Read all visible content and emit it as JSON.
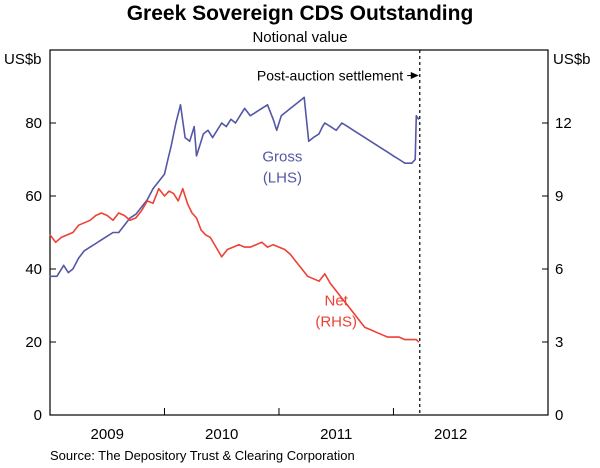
{
  "chart_data": {
    "type": "line",
    "title": "Greek Sovereign CDS Outstanding",
    "subtitle": "Notional value",
    "left_unit": "US$b",
    "right_unit": "US$b",
    "left_ylim": [
      0,
      100
    ],
    "right_ylim": [
      0,
      15
    ],
    "left_ticks": [
      0,
      20,
      40,
      60,
      80
    ],
    "right_ticks": [
      0,
      3,
      6,
      9,
      12
    ],
    "x_range": [
      2008.6,
      2012.95
    ],
    "year_boundaries": [
      2009.6,
      2010.6,
      2011.6
    ],
    "x_labels": [
      {
        "year": 2009.1,
        "label": "2009"
      },
      {
        "year": 2010.1,
        "label": "2010"
      },
      {
        "year": 2011.1,
        "label": "2011"
      },
      {
        "year": 2012.1,
        "label": "2012"
      }
    ],
    "annotation": {
      "text": "Post-auction settlement",
      "x": 2011.83,
      "arrow_from": 2011.72,
      "y_left": 93
    },
    "source": "Source: The Depository Trust & Clearing Corporation",
    "colors": {
      "gross": "#5457a6",
      "net": "#ee4136",
      "axis": "#000000"
    },
    "series": [
      {
        "name": "Gross",
        "axis": "left",
        "label_line1": "Gross",
        "label_line2": "(LHS)",
        "label_at": [
          2010.63,
          69.5
        ],
        "x": [
          2008.6,
          2008.66,
          2008.72,
          2008.76,
          2008.8,
          2008.85,
          2008.9,
          2008.95,
          2009.0,
          2009.05,
          2009.1,
          2009.15,
          2009.2,
          2009.25,
          2009.3,
          2009.35,
          2009.4,
          2009.45,
          2009.5,
          2009.55,
          2009.6,
          2009.63,
          2009.66,
          2009.7,
          2009.74,
          2009.78,
          2009.82,
          2009.86,
          2009.88,
          2009.9,
          2009.94,
          2009.98,
          2010.02,
          2010.06,
          2010.1,
          2010.14,
          2010.18,
          2010.22,
          2010.26,
          2010.3,
          2010.35,
          2010.4,
          2010.45,
          2010.5,
          2010.55,
          2010.58,
          2010.62,
          2010.66,
          2010.7,
          2010.74,
          2010.78,
          2010.82,
          2010.86,
          2010.9,
          2010.95,
          2010.98,
          2011.0,
          2011.05,
          2011.1,
          2011.15,
          2011.2,
          2011.25,
          2011.3,
          2011.35,
          2011.4,
          2011.45,
          2011.5,
          2011.55,
          2011.6,
          2011.65,
          2011.7,
          2011.76,
          2011.79,
          2011.8,
          2011.82
        ],
        "values": [
          38,
          38,
          41,
          39,
          40,
          43,
          45,
          46,
          47,
          48,
          49,
          50,
          50,
          52,
          54,
          55,
          57,
          59,
          62,
          64,
          66,
          70,
          74,
          80,
          85,
          76,
          75,
          79,
          71,
          73,
          77,
          78,
          76,
          78,
          80,
          79,
          81,
          80,
          82,
          84,
          82,
          83,
          84,
          85,
          81,
          78,
          82,
          83,
          84,
          85,
          86,
          87,
          75,
          76,
          77,
          79,
          80,
          79,
          78,
          80,
          79,
          78,
          77,
          76,
          75,
          74,
          73,
          72,
          71,
          70,
          69,
          69,
          70,
          82,
          81
        ]
      },
      {
        "name": "Net",
        "axis": "right",
        "label_line1": "Net",
        "label_line2": "(RHS)",
        "label_at": [
          2011.1,
          4.5
        ],
        "x": [
          2008.6,
          2008.65,
          2008.7,
          2008.75,
          2008.8,
          2008.85,
          2008.9,
          2008.95,
          2009.0,
          2009.05,
          2009.1,
          2009.15,
          2009.2,
          2009.25,
          2009.3,
          2009.35,
          2009.4,
          2009.45,
          2009.5,
          2009.55,
          2009.6,
          2009.64,
          2009.68,
          2009.72,
          2009.76,
          2009.8,
          2009.84,
          2009.88,
          2009.92,
          2009.96,
          2010.0,
          2010.05,
          2010.1,
          2010.15,
          2010.2,
          2010.25,
          2010.3,
          2010.35,
          2010.4,
          2010.45,
          2010.5,
          2010.55,
          2010.6,
          2010.65,
          2010.7,
          2010.75,
          2010.8,
          2010.85,
          2010.9,
          2010.95,
          2011.0,
          2011.05,
          2011.1,
          2011.15,
          2011.2,
          2011.25,
          2011.3,
          2011.35,
          2011.4,
          2011.45,
          2011.5,
          2011.55,
          2011.6,
          2011.65,
          2011.7,
          2011.75,
          2011.8,
          2011.82
        ],
        "values": [
          7.4,
          7.1,
          7.3,
          7.4,
          7.5,
          7.8,
          7.9,
          8.0,
          8.2,
          8.3,
          8.2,
          8.0,
          8.3,
          8.2,
          8.0,
          8.1,
          8.4,
          8.8,
          8.7,
          9.3,
          9.0,
          9.2,
          9.1,
          8.8,
          9.3,
          8.7,
          8.3,
          8.1,
          7.6,
          7.4,
          7.3,
          6.9,
          6.5,
          6.8,
          6.9,
          7.0,
          6.9,
          6.9,
          7.0,
          7.1,
          6.9,
          7.0,
          6.9,
          6.8,
          6.6,
          6.3,
          6.0,
          5.7,
          5.6,
          5.5,
          5.8,
          5.4,
          5.1,
          4.8,
          4.5,
          4.2,
          3.9,
          3.6,
          3.5,
          3.4,
          3.3,
          3.2,
          3.2,
          3.2,
          3.1,
          3.1,
          3.1,
          3.0
        ]
      }
    ]
  }
}
